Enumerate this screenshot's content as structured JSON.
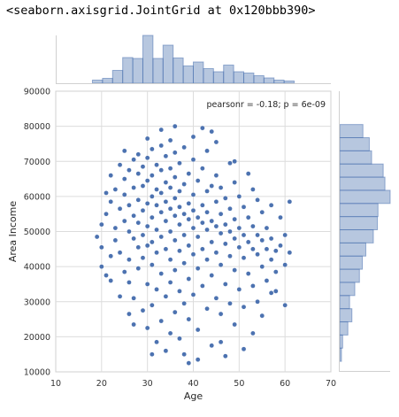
{
  "header": {
    "repr_text": "<seaborn.axisgrid.JointGrid at 0x120bbb390>"
  },
  "chart_data": {
    "type": "scatter",
    "joint": {
      "xlabel": "Age",
      "ylabel": "Area Income",
      "xlim": [
        10,
        70
      ],
      "ylim": [
        10000,
        90000
      ],
      "xticks": [
        10,
        20,
        30,
        40,
        50,
        60,
        70
      ],
      "yticks": [
        10000,
        20000,
        30000,
        40000,
        50000,
        60000,
        70000,
        80000,
        90000
      ],
      "annotation": "pearsonr = -0.18; p = 6e-09",
      "grid": true,
      "color": "#4c72b0",
      "points": [
        [
          19,
          48500
        ],
        [
          20,
          52000
        ],
        [
          20,
          45500
        ],
        [
          21,
          55000
        ],
        [
          21,
          61000
        ],
        [
          22,
          43000
        ],
        [
          22,
          58500
        ],
        [
          22,
          66000
        ],
        [
          23,
          51000
        ],
        [
          23,
          47500
        ],
        [
          23,
          62000
        ],
        [
          24,
          56500
        ],
        [
          24,
          44000
        ],
        [
          24,
          69000
        ],
        [
          25,
          53000
        ],
        [
          25,
          38500
        ],
        [
          25,
          60500
        ],
        [
          25,
          65000
        ],
        [
          26,
          50000
        ],
        [
          26,
          57500
        ],
        [
          26,
          42000
        ],
        [
          26,
          67500
        ],
        [
          26,
          35500
        ],
        [
          27,
          54500
        ],
        [
          27,
          48000
        ],
        [
          27,
          62500
        ],
        [
          27,
          70500
        ],
        [
          27,
          31000
        ],
        [
          28,
          59000
        ],
        [
          28,
          45500
        ],
        [
          28,
          52500
        ],
        [
          28,
          66500
        ],
        [
          28,
          39500
        ],
        [
          28,
          72000
        ],
        [
          29,
          56000
        ],
        [
          29,
          49000
        ],
        [
          29,
          63000
        ],
        [
          29,
          42500
        ],
        [
          29,
          27500
        ],
        [
          29,
          68500
        ],
        [
          30,
          58000
        ],
        [
          30,
          51500
        ],
        [
          30,
          46000
        ],
        [
          30,
          64500
        ],
        [
          30,
          35000
        ],
        [
          30,
          71000
        ],
        [
          30,
          22500
        ],
        [
          31,
          54000
        ],
        [
          31,
          60000
        ],
        [
          31,
          47000
        ],
        [
          31,
          66000
        ],
        [
          31,
          40500
        ],
        [
          31,
          73500
        ],
        [
          31,
          29000
        ],
        [
          32,
          57500
        ],
        [
          32,
          50500
        ],
        [
          32,
          62000
        ],
        [
          32,
          44000
        ],
        [
          32,
          69000
        ],
        [
          32,
          33500
        ],
        [
          32,
          18500
        ],
        [
          33,
          55500
        ],
        [
          33,
          48500
        ],
        [
          33,
          61000
        ],
        [
          33,
          67500
        ],
        [
          33,
          38000
        ],
        [
          33,
          74500
        ],
        [
          33,
          24500
        ],
        [
          34,
          53000
        ],
        [
          34,
          58500
        ],
        [
          34,
          45000
        ],
        [
          34,
          64000
        ],
        [
          34,
          71500
        ],
        [
          34,
          31500
        ],
        [
          34,
          16000
        ],
        [
          35,
          56500
        ],
        [
          35,
          50000
        ],
        [
          35,
          62500
        ],
        [
          35,
          42000
        ],
        [
          35,
          68000
        ],
        [
          35,
          35500
        ],
        [
          35,
          76000
        ],
        [
          35,
          21000
        ],
        [
          36,
          54500
        ],
        [
          36,
          59500
        ],
        [
          36,
          47500
        ],
        [
          36,
          65500
        ],
        [
          36,
          39000
        ],
        [
          36,
          72500
        ],
        [
          36,
          27000
        ],
        [
          37,
          52000
        ],
        [
          37,
          57000
        ],
        [
          37,
          61500
        ],
        [
          37,
          44500
        ],
        [
          37,
          69500
        ],
        [
          37,
          33000
        ],
        [
          37,
          19500
        ],
        [
          38,
          55000
        ],
        [
          38,
          49000
        ],
        [
          38,
          63500
        ],
        [
          38,
          41000
        ],
        [
          38,
          74000
        ],
        [
          38,
          29500
        ],
        [
          38,
          15000
        ],
        [
          39,
          53500
        ],
        [
          39,
          58000
        ],
        [
          39,
          46000
        ],
        [
          39,
          66500
        ],
        [
          39,
          36500
        ],
        [
          39,
          25000
        ],
        [
          40,
          51000
        ],
        [
          40,
          56000
        ],
        [
          40,
          60500
        ],
        [
          40,
          43500
        ],
        [
          40,
          70500
        ],
        [
          40,
          32000
        ],
        [
          40,
          77000
        ],
        [
          41,
          54000
        ],
        [
          41,
          48500
        ],
        [
          41,
          64500
        ],
        [
          41,
          39500
        ],
        [
          41,
          22000
        ],
        [
          41,
          13500
        ],
        [
          42,
          52500
        ],
        [
          42,
          57500
        ],
        [
          42,
          45000
        ],
        [
          42,
          68000
        ],
        [
          42,
          34500
        ],
        [
          42,
          79500
        ],
        [
          43,
          50500
        ],
        [
          43,
          55500
        ],
        [
          43,
          61500
        ],
        [
          43,
          42000
        ],
        [
          43,
          28000
        ],
        [
          43,
          73000
        ],
        [
          44,
          53000
        ],
        [
          44,
          47000
        ],
        [
          44,
          63000
        ],
        [
          44,
          37500
        ],
        [
          44,
          17500
        ],
        [
          45,
          51500
        ],
        [
          45,
          58500
        ],
        [
          45,
          44000
        ],
        [
          45,
          66000
        ],
        [
          45,
          31000
        ],
        [
          45,
          75500
        ],
        [
          46,
          49500
        ],
        [
          46,
          55000
        ],
        [
          46,
          40500
        ],
        [
          46,
          62500
        ],
        [
          46,
          26500
        ],
        [
          47,
          52000
        ],
        [
          47,
          46500
        ],
        [
          47,
          59500
        ],
        [
          47,
          35000
        ],
        [
          47,
          14500
        ],
        [
          48,
          50000
        ],
        [
          48,
          56500
        ],
        [
          48,
          43000
        ],
        [
          48,
          69500
        ],
        [
          48,
          29500
        ],
        [
          49,
          48000
        ],
        [
          49,
          53500
        ],
        [
          49,
          39000
        ],
        [
          49,
          64000
        ],
        [
          49,
          23500
        ],
        [
          50,
          51000
        ],
        [
          50,
          45500
        ],
        [
          50,
          60000
        ],
        [
          50,
          33500
        ],
        [
          51,
          49000
        ],
        [
          51,
          42500
        ],
        [
          51,
          57000
        ],
        [
          51,
          28500
        ],
        [
          52,
          47000
        ],
        [
          52,
          54000
        ],
        [
          52,
          38000
        ],
        [
          52,
          66500
        ],
        [
          53,
          45000
        ],
        [
          53,
          51500
        ],
        [
          53,
          34500
        ],
        [
          53,
          21000
        ],
        [
          54,
          43500
        ],
        [
          54,
          49000
        ],
        [
          54,
          59000
        ],
        [
          54,
          30000
        ],
        [
          55,
          47500
        ],
        [
          55,
          40000
        ],
        [
          55,
          55500
        ],
        [
          56,
          45000
        ],
        [
          56,
          36000
        ],
        [
          56,
          51000
        ],
        [
          57,
          42000
        ],
        [
          57,
          32500
        ],
        [
          57,
          48000
        ],
        [
          58,
          44500
        ],
        [
          58,
          38500
        ],
        [
          59,
          46000
        ],
        [
          59,
          54000
        ],
        [
          60,
          40500
        ],
        [
          60,
          49000
        ],
        [
          61,
          44000
        ],
        [
          61,
          58500
        ],
        [
          25,
          73000
        ],
        [
          30,
          76500
        ],
        [
          33,
          79000
        ],
        [
          27,
          23500
        ],
        [
          36,
          80000
        ],
        [
          44,
          78500
        ],
        [
          39,
          12500
        ],
        [
          49,
          70000
        ],
        [
          53,
          62000
        ],
        [
          57,
          57500
        ],
        [
          22,
          36000
        ],
        [
          24,
          31500
        ],
        [
          26,
          26500
        ],
        [
          31,
          15000
        ],
        [
          46,
          18500
        ],
        [
          51,
          16500
        ],
        [
          55,
          26000
        ],
        [
          58,
          33000
        ],
        [
          60,
          29000
        ],
        [
          20,
          40000
        ],
        [
          21,
          37500
        ]
      ]
    },
    "marginal_x": {
      "type": "histogram",
      "bin_edges": [
        18,
        20.2,
        22.4,
        24.6,
        26.8,
        29,
        31.2,
        33.4,
        35.6,
        37.8,
        40,
        42.2,
        44.4,
        46.6,
        48.8,
        51,
        53.2,
        55.4,
        57.6,
        59.8,
        62
      ],
      "counts": [
        7,
        11,
        29,
        58,
        56,
        108,
        56,
        86,
        57,
        39,
        48,
        33,
        26,
        41,
        26,
        23,
        17,
        12,
        7,
        5
      ]
    },
    "marginal_y": {
      "type": "histogram",
      "bin_edges": [
        13000,
        16750,
        20500,
        24250,
        28000,
        31750,
        35500,
        39250,
        43000,
        46750,
        50500,
        54250,
        58000,
        61750,
        65500,
        69250,
        73000,
        76750,
        80500
      ],
      "counts": [
        3,
        5,
        14,
        21,
        17,
        26,
        34,
        39,
        45,
        58,
        65,
        66,
        87,
        78,
        75,
        55,
        51,
        40
      ]
    }
  }
}
